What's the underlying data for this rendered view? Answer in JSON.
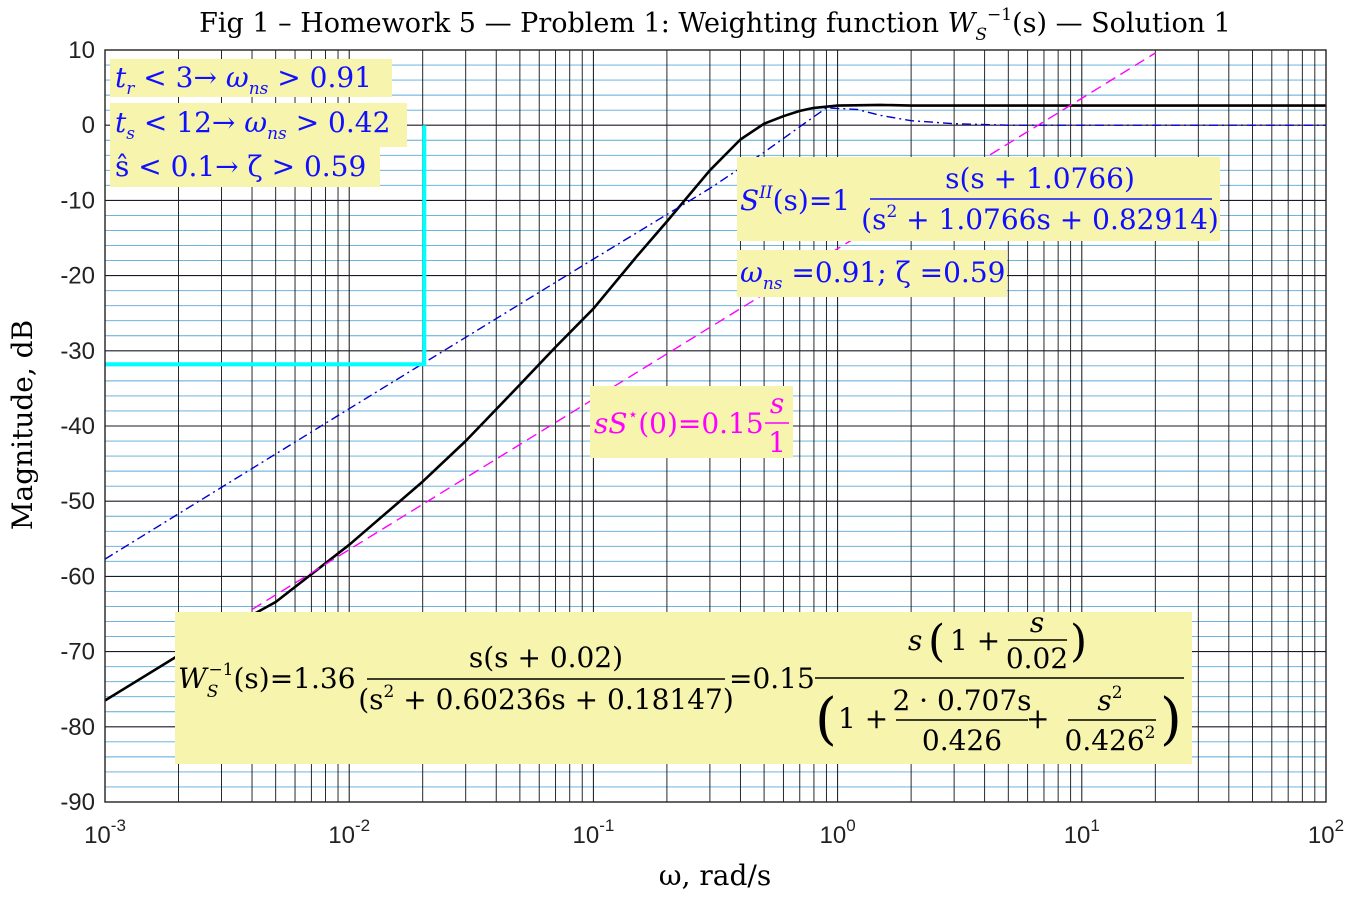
{
  "chart_data": {
    "type": "line",
    "title": "Fig 1 – Homework 5 — Problem 1: Weighting function W_S^{-1}(s) — Solution 1",
    "title_parts": {
      "prefix": "Fig 1 – Homework 5 — Problem 1: Weighting function ",
      "sym": "W",
      "sub": "S",
      "sup": "−1",
      "after": "(s) — Solution 1"
    },
    "xlabel": "ω,  rad/s",
    "ylabel": "Magnitude, dB",
    "xscale": "log",
    "xlim": [
      0.001,
      100
    ],
    "ylim": [
      -90,
      10
    ],
    "yticks": [
      10,
      0,
      -10,
      -20,
      -30,
      -40,
      -50,
      -60,
      -70,
      -80,
      -90
    ],
    "ytick_labels": [
      "10",
      "0",
      "-10",
      "-20",
      "-30",
      "-40",
      "-50",
      "-60",
      "-70",
      "-80",
      "-90"
    ],
    "xticks": [
      {
        "base": "10",
        "exp": "-3"
      },
      {
        "base": "10",
        "exp": "-2"
      },
      {
        "base": "10",
        "exp": "-1"
      },
      {
        "base": "10",
        "exp": "0"
      },
      {
        "base": "10",
        "exp": "1"
      },
      {
        "base": "10",
        "exp": "2"
      }
    ],
    "grid": true,
    "minor_grid": true,
    "series": [
      {
        "style": "solid",
        "color": "#000000",
        "x": [
          0.001,
          0.002,
          0.005,
          0.01,
          0.02,
          0.03,
          0.05,
          0.07,
          0.1,
          0.15,
          0.2,
          0.3,
          0.4,
          0.5,
          0.6,
          0.7,
          0.8,
          1.0,
          1.5,
          2,
          5,
          10,
          100
        ],
        "y": [
          -76.5,
          -70.5,
          -63.4,
          -55.8,
          -47.4,
          -42.0,
          -34.5,
          -29.5,
          -24.4,
          -17.5,
          -12.8,
          -6.0,
          -1.9,
          0.2,
          1.2,
          1.9,
          2.3,
          2.6,
          2.7,
          2.6,
          2.6,
          2.6,
          2.6
        ]
      },
      {
        "style": "dashdot",
        "color": "#0000cc",
        "x": [
          0.001,
          0.01,
          0.1,
          0.3,
          0.5,
          0.7,
          0.9,
          1.2,
          1.5,
          2,
          3,
          5,
          10,
          100
        ],
        "y": [
          -57.7,
          -37.7,
          -17.8,
          -8.4,
          -3.6,
          -0.2,
          2.3,
          2.1,
          1.3,
          0.6,
          0.2,
          0.0,
          0.0,
          0.0
        ]
      },
      {
        "style": "dashed",
        "color": "#ff00ff",
        "x": [
          0.004,
          20
        ],
        "y": [
          -64.4,
          9.6
        ]
      },
      {
        "style": "solid",
        "color": "#00ffff",
        "width": 4,
        "x": [
          0.001,
          0.0203,
          0.0203
        ],
        "y": [
          -31.8,
          -31.8,
          0.0
        ]
      }
    ],
    "annotations": {
      "specs": [
        {
          "var": "t",
          "sub": "r",
          "rel": " < 3→ ",
          "wvar": "ω",
          "wsub": "ns",
          "rhs": " > 0.91"
        },
        {
          "var": "t",
          "sub": "s",
          "rel": " < 12→ ",
          "wvar": "ω",
          "wsub": "ns",
          "rhs": " > 0.42"
        },
        {
          "text": "ŝ < 0.1→ ζ > 0.59"
        }
      ],
      "sii": {
        "lhs": "S",
        "sup": "II",
        "arg": "(s)=1",
        "num": "s(s + 1.0766)",
        "den_pre": "(s",
        "den_post": " + 1.0766s + 0.82914)"
      },
      "wns": {
        "w": "ω",
        "sub": "ns",
        "rest": " =0.91; ζ =0.59"
      },
      "ss0": {
        "lhs": "sS",
        "sup": "⋆",
        "mid": "(0)=0.15",
        "num": "s",
        "den": "1"
      },
      "ws": {
        "lhs_sym": "W",
        "lhs_sub": "S",
        "lhs_sup": "−1",
        "lhs_arg": "(s)=1.36",
        "num1": "s(s + 0.02)",
        "den1_pre": "(s",
        "den1_post": " + 0.60236s + 0.18147)",
        "mid": "=0.15",
        "num2_pre": "s",
        "num2_inner_pre": "1 + ",
        "num2_frac_num": "s",
        "num2_frac_den": "0.02",
        "den2_a": "1 + ",
        "den2_fnum": "2 · 0.707s",
        "den2_fden": "0.426",
        "den2_plus": " + ",
        "den2_gnum": "s",
        "den2_gden": "0.426"
      }
    }
  }
}
